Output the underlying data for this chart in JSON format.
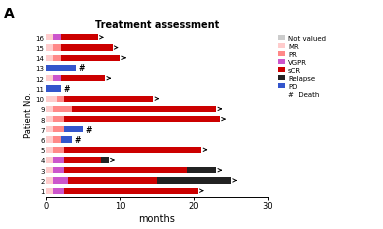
{
  "title": "Treatment assessment",
  "panel_label": "A",
  "xlabel": "months",
  "ylabel": "Patient No.",
  "xlim": [
    0,
    30
  ],
  "colors": {
    "Not valued": "#cccccc",
    "MR": "#ffcccc",
    "PR": "#ff8888",
    "VGPR": "#cc55cc",
    "sCR": "#cc0000",
    "Relapse": "#222222",
    "PD": "#3355cc"
  },
  "patients": [
    {
      "id": "16",
      "segments": [
        [
          "MR",
          1.0
        ],
        [
          "VGPR",
          1.0
        ],
        [
          "sCR",
          5.0
        ]
      ],
      "arrow": true,
      "hash": false
    },
    {
      "id": "15",
      "segments": [
        [
          "MR",
          1.0
        ],
        [
          "PR",
          1.0
        ],
        [
          "sCR",
          7.0
        ]
      ],
      "arrow": true,
      "hash": false
    },
    {
      "id": "14",
      "segments": [
        [
          "MR",
          1.0
        ],
        [
          "PR",
          1.0
        ],
        [
          "sCR",
          8.0
        ]
      ],
      "arrow": true,
      "hash": false
    },
    {
      "id": "13",
      "segments": [
        [
          "PD",
          4.0
        ]
      ],
      "arrow": false,
      "hash": true
    },
    {
      "id": "12",
      "segments": [
        [
          "MR",
          1.0
        ],
        [
          "VGPR",
          1.0
        ],
        [
          "sCR",
          6.0
        ]
      ],
      "arrow": true,
      "hash": false
    },
    {
      "id": "11",
      "segments": [
        [
          "PD",
          2.0
        ]
      ],
      "arrow": false,
      "hash": true
    },
    {
      "id": "10",
      "segments": [
        [
          "MR",
          1.5
        ],
        [
          "PR",
          1.0
        ],
        [
          "sCR",
          12.0
        ]
      ],
      "arrow": true,
      "hash": false
    },
    {
      "id": "9",
      "segments": [
        [
          "MR",
          1.0
        ],
        [
          "PR",
          2.5
        ],
        [
          "sCR",
          19.5
        ]
      ],
      "arrow": true,
      "hash": false
    },
    {
      "id": "8",
      "segments": [
        [
          "MR",
          1.0
        ],
        [
          "PR",
          1.5
        ],
        [
          "sCR",
          21.0
        ]
      ],
      "arrow": true,
      "hash": false
    },
    {
      "id": "7",
      "segments": [
        [
          "MR",
          1.0
        ],
        [
          "PR",
          1.5
        ],
        [
          "PD",
          2.5
        ]
      ],
      "arrow": false,
      "hash": true
    },
    {
      "id": "6",
      "segments": [
        [
          "MR",
          1.0
        ],
        [
          "PR",
          1.0
        ],
        [
          "PD",
          1.5
        ]
      ],
      "arrow": false,
      "hash": true
    },
    {
      "id": "5",
      "segments": [
        [
          "MR",
          1.0
        ],
        [
          "PR",
          1.5
        ],
        [
          "sCR",
          18.5
        ]
      ],
      "arrow": true,
      "hash": false
    },
    {
      "id": "4",
      "segments": [
        [
          "MR",
          1.0
        ],
        [
          "VGPR",
          1.5
        ],
        [
          "sCR",
          5.0
        ],
        [
          "Relapse",
          1.0
        ]
      ],
      "arrow": true,
      "hash": false
    },
    {
      "id": "3",
      "segments": [
        [
          "MR",
          1.0
        ],
        [
          "VGPR",
          1.5
        ],
        [
          "sCR",
          16.5
        ],
        [
          "Relapse",
          4.0
        ]
      ],
      "arrow": true,
      "hash": false
    },
    {
      "id": "2",
      "segments": [
        [
          "MR",
          1.0
        ],
        [
          "VGPR",
          2.0
        ],
        [
          "sCR",
          12.0
        ],
        [
          "Relapse",
          10.0
        ]
      ],
      "arrow": true,
      "hash": false
    },
    {
      "id": "1",
      "segments": [
        [
          "MR",
          1.0
        ],
        [
          "VGPR",
          1.5
        ],
        [
          "sCR",
          18.0
        ]
      ],
      "arrow": true,
      "hash": false
    }
  ],
  "legend_order": [
    "Not valued",
    "MR",
    "PR",
    "VGPR",
    "sCR",
    "Relapse",
    "PD"
  ],
  "bar_height": 0.6
}
